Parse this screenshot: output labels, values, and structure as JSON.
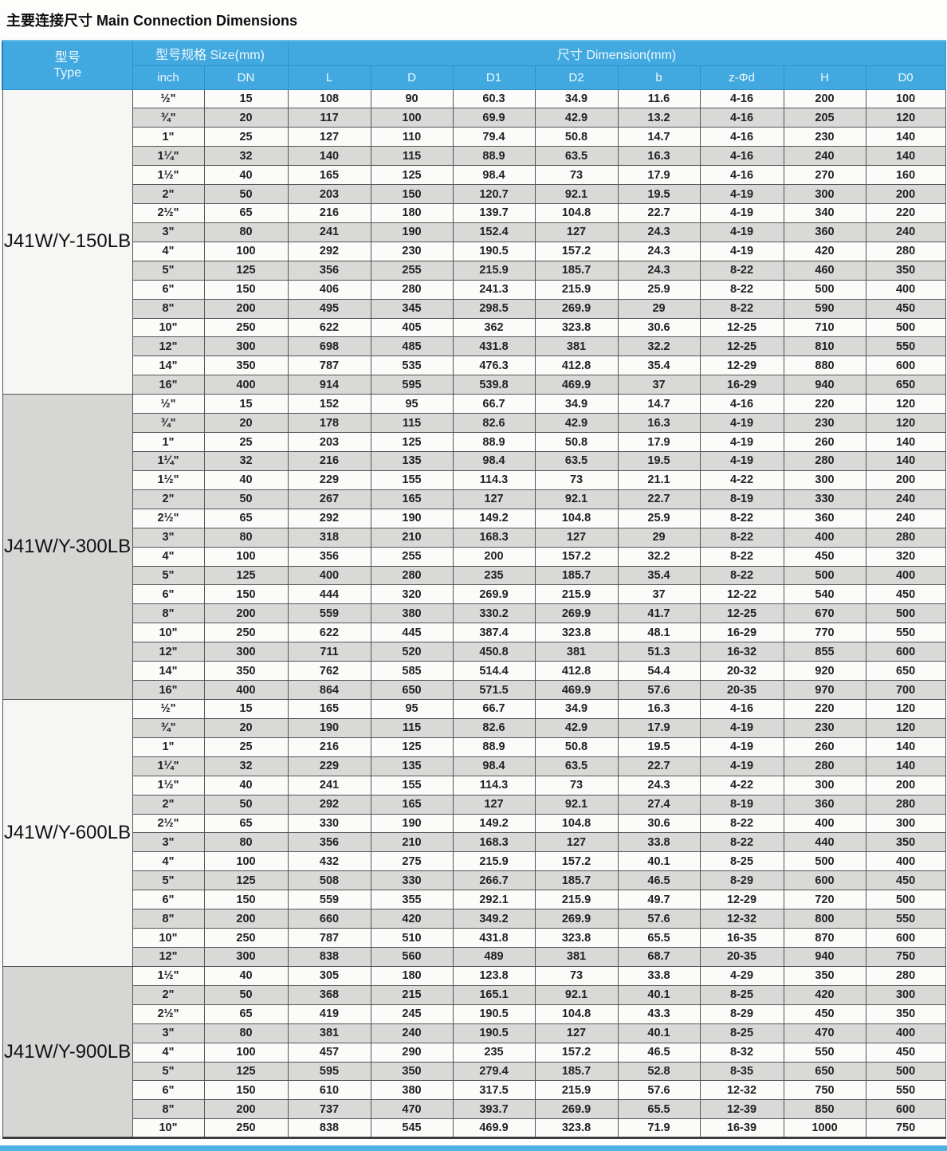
{
  "page": {
    "title": "主要连接尺寸 Main Connection Dimensions"
  },
  "table": {
    "header": {
      "type_zh": "型号",
      "type_en": "Type",
      "size_label": "型号规格 Size(mm)",
      "dimension_label": "尺寸 Dimension(mm)",
      "columns": [
        "inch",
        "DN",
        "L",
        "D",
        "D1",
        "D2",
        "b",
        "z-Φd",
        "H",
        "D0"
      ]
    },
    "groups": [
      {
        "type": "J41W/Y-150LB",
        "rows": [
          [
            "½\"",
            "15",
            "108",
            "90",
            "60.3",
            "34.9",
            "11.6",
            "4-16",
            "200",
            "100"
          ],
          [
            "¾\"",
            "20",
            "117",
            "100",
            "69.9",
            "42.9",
            "13.2",
            "4-16",
            "205",
            "120"
          ],
          [
            "1\"",
            "25",
            "127",
            "110",
            "79.4",
            "50.8",
            "14.7",
            "4-16",
            "230",
            "140"
          ],
          [
            "1¼\"",
            "32",
            "140",
            "115",
            "88.9",
            "63.5",
            "16.3",
            "4-16",
            "240",
            "140"
          ],
          [
            "1½\"",
            "40",
            "165",
            "125",
            "98.4",
            "73",
            "17.9",
            "4-16",
            "270",
            "160"
          ],
          [
            "2\"",
            "50",
            "203",
            "150",
            "120.7",
            "92.1",
            "19.5",
            "4-19",
            "300",
            "200"
          ],
          [
            "2½\"",
            "65",
            "216",
            "180",
            "139.7",
            "104.8",
            "22.7",
            "4-19",
            "340",
            "220"
          ],
          [
            "3\"",
            "80",
            "241",
            "190",
            "152.4",
            "127",
            "24.3",
            "4-19",
            "360",
            "240"
          ],
          [
            "4\"",
            "100",
            "292",
            "230",
            "190.5",
            "157.2",
            "24.3",
            "4-19",
            "420",
            "280"
          ],
          [
            "5\"",
            "125",
            "356",
            "255",
            "215.9",
            "185.7",
            "24.3",
            "8-22",
            "460",
            "350"
          ],
          [
            "6\"",
            "150",
            "406",
            "280",
            "241.3",
            "215.9",
            "25.9",
            "8-22",
            "500",
            "400"
          ],
          [
            "8\"",
            "200",
            "495",
            "345",
            "298.5",
            "269.9",
            "29",
            "8-22",
            "590",
            "450"
          ],
          [
            "10\"",
            "250",
            "622",
            "405",
            "362",
            "323.8",
            "30.6",
            "12-25",
            "710",
            "500"
          ],
          [
            "12\"",
            "300",
            "698",
            "485",
            "431.8",
            "381",
            "32.2",
            "12-25",
            "810",
            "550"
          ],
          [
            "14\"",
            "350",
            "787",
            "535",
            "476.3",
            "412.8",
            "35.4",
            "12-29",
            "880",
            "600"
          ],
          [
            "16\"",
            "400",
            "914",
            "595",
            "539.8",
            "469.9",
            "37",
            "16-29",
            "940",
            "650"
          ]
        ]
      },
      {
        "type": "J41W/Y-300LB",
        "rows": [
          [
            "½\"",
            "15",
            "152",
            "95",
            "66.7",
            "34.9",
            "14.7",
            "4-16",
            "220",
            "120"
          ],
          [
            "¾\"",
            "20",
            "178",
            "115",
            "82.6",
            "42.9",
            "16.3",
            "4-19",
            "230",
            "120"
          ],
          [
            "1\"",
            "25",
            "203",
            "125",
            "88.9",
            "50.8",
            "17.9",
            "4-19",
            "260",
            "140"
          ],
          [
            "1¼\"",
            "32",
            "216",
            "135",
            "98.4",
            "63.5",
            "19.5",
            "4-19",
            "280",
            "140"
          ],
          [
            "1½\"",
            "40",
            "229",
            "155",
            "114.3",
            "73",
            "21.1",
            "4-22",
            "300",
            "200"
          ],
          [
            "2\"",
            "50",
            "267",
            "165",
            "127",
            "92.1",
            "22.7",
            "8-19",
            "330",
            "240"
          ],
          [
            "2½\"",
            "65",
            "292",
            "190",
            "149.2",
            "104.8",
            "25.9",
            "8-22",
            "360",
            "240"
          ],
          [
            "3\"",
            "80",
            "318",
            "210",
            "168.3",
            "127",
            "29",
            "8-22",
            "400",
            "280"
          ],
          [
            "4\"",
            "100",
            "356",
            "255",
            "200",
            "157.2",
            "32.2",
            "8-22",
            "450",
            "320"
          ],
          [
            "5\"",
            "125",
            "400",
            "280",
            "235",
            "185.7",
            "35.4",
            "8-22",
            "500",
            "400"
          ],
          [
            "6\"",
            "150",
            "444",
            "320",
            "269.9",
            "215.9",
            "37",
            "12-22",
            "540",
            "450"
          ],
          [
            "8\"",
            "200",
            "559",
            "380",
            "330.2",
            "269.9",
            "41.7",
            "12-25",
            "670",
            "500"
          ],
          [
            "10\"",
            "250",
            "622",
            "445",
            "387.4",
            "323.8",
            "48.1",
            "16-29",
            "770",
            "550"
          ],
          [
            "12\"",
            "300",
            "711",
            "520",
            "450.8",
            "381",
            "51.3",
            "16-32",
            "855",
            "600"
          ],
          [
            "14\"",
            "350",
            "762",
            "585",
            "514.4",
            "412.8",
            "54.4",
            "20-32",
            "920",
            "650"
          ],
          [
            "16\"",
            "400",
            "864",
            "650",
            "571.5",
            "469.9",
            "57.6",
            "20-35",
            "970",
            "700"
          ]
        ]
      },
      {
        "type": "J41W/Y-600LB",
        "rows": [
          [
            "½\"",
            "15",
            "165",
            "95",
            "66.7",
            "34.9",
            "16.3",
            "4-16",
            "220",
            "120"
          ],
          [
            "¾\"",
            "20",
            "190",
            "115",
            "82.6",
            "42.9",
            "17.9",
            "4-19",
            "230",
            "120"
          ],
          [
            "1\"",
            "25",
            "216",
            "125",
            "88.9",
            "50.8",
            "19.5",
            "4-19",
            "260",
            "140"
          ],
          [
            "1¼\"",
            "32",
            "229",
            "135",
            "98.4",
            "63.5",
            "22.7",
            "4-19",
            "280",
            "140"
          ],
          [
            "1½\"",
            "40",
            "241",
            "155",
            "114.3",
            "73",
            "24.3",
            "4-22",
            "300",
            "200"
          ],
          [
            "2\"",
            "50",
            "292",
            "165",
            "127",
            "92.1",
            "27.4",
            "8-19",
            "360",
            "280"
          ],
          [
            "2½\"",
            "65",
            "330",
            "190",
            "149.2",
            "104.8",
            "30.6",
            "8-22",
            "400",
            "300"
          ],
          [
            "3\"",
            "80",
            "356",
            "210",
            "168.3",
            "127",
            "33.8",
            "8-22",
            "440",
            "350"
          ],
          [
            "4\"",
            "100",
            "432",
            "275",
            "215.9",
            "157.2",
            "40.1",
            "8-25",
            "500",
            "400"
          ],
          [
            "5\"",
            "125",
            "508",
            "330",
            "266.7",
            "185.7",
            "46.5",
            "8-29",
            "600",
            "450"
          ],
          [
            "6\"",
            "150",
            "559",
            "355",
            "292.1",
            "215.9",
            "49.7",
            "12-29",
            "720",
            "500"
          ],
          [
            "8\"",
            "200",
            "660",
            "420",
            "349.2",
            "269.9",
            "57.6",
            "12-32",
            "800",
            "550"
          ],
          [
            "10\"",
            "250",
            "787",
            "510",
            "431.8",
            "323.8",
            "65.5",
            "16-35",
            "870",
            "600"
          ],
          [
            "12\"",
            "300",
            "838",
            "560",
            "489",
            "381",
            "68.7",
            "20-35",
            "940",
            "750"
          ]
        ]
      },
      {
        "type": "J41W/Y-900LB",
        "rows": [
          [
            "1½\"",
            "40",
            "305",
            "180",
            "123.8",
            "73",
            "33.8",
            "4-29",
            "350",
            "280"
          ],
          [
            "2\"",
            "50",
            "368",
            "215",
            "165.1",
            "92.1",
            "40.1",
            "8-25",
            "420",
            "300"
          ],
          [
            "2½\"",
            "65",
            "419",
            "245",
            "190.5",
            "104.8",
            "43.3",
            "8-29",
            "450",
            "350"
          ],
          [
            "3\"",
            "80",
            "381",
            "240",
            "190.5",
            "127",
            "40.1",
            "8-25",
            "470",
            "400"
          ],
          [
            "4\"",
            "100",
            "457",
            "290",
            "235",
            "157.2",
            "46.5",
            "8-32",
            "550",
            "450"
          ],
          [
            "5\"",
            "125",
            "595",
            "350",
            "279.4",
            "185.7",
            "52.8",
            "8-35",
            "650",
            "500"
          ],
          [
            "6\"",
            "150",
            "610",
            "380",
            "317.5",
            "215.9",
            "57.6",
            "12-32",
            "750",
            "550"
          ],
          [
            "8\"",
            "200",
            "737",
            "470",
            "393.7",
            "269.9",
            "65.5",
            "12-39",
            "850",
            "600"
          ],
          [
            "10\"",
            "250",
            "838",
            "545",
            "469.9",
            "323.8",
            "71.9",
            "16-39",
            "1000",
            "750"
          ]
        ]
      }
    ]
  }
}
